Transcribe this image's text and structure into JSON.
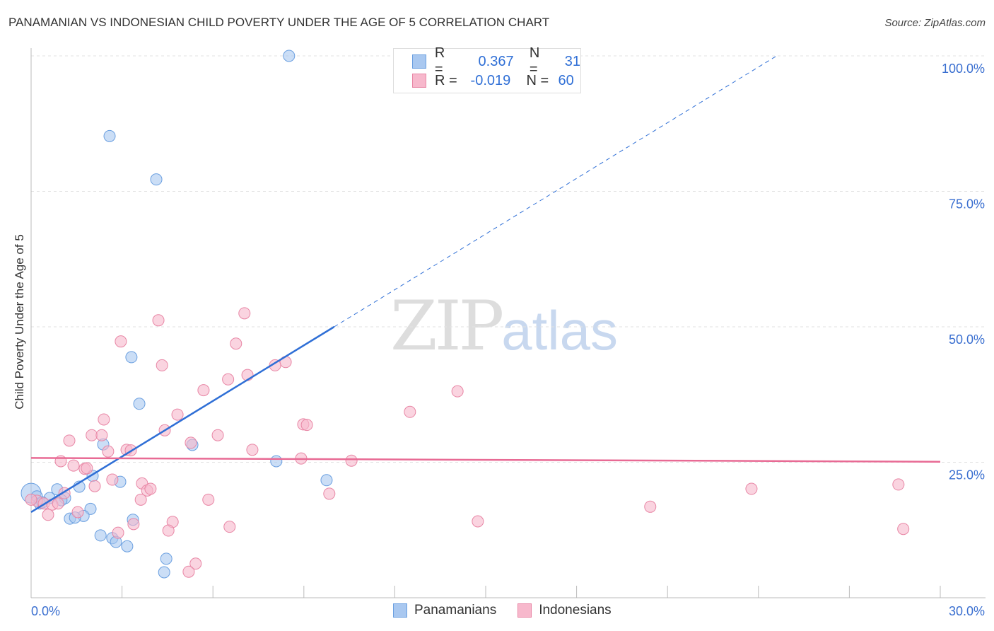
{
  "title": "PANAMANIAN VS INDONESIAN CHILD POVERTY UNDER THE AGE OF 5 CORRELATION CHART",
  "source": "Source: ZipAtlas.com",
  "watermark": {
    "zip": "ZIP",
    "atlas": "atlas"
  },
  "legend": {
    "rows": [
      {
        "r_label": "R =",
        "r": "0.367",
        "n_label": "N =",
        "n": "31"
      },
      {
        "r_label": "R =",
        "r": "-0.019",
        "n_label": "N =",
        "n": "60"
      }
    ]
  },
  "chart_data": {
    "type": "scatter",
    "title": "PANAMANIAN VS INDONESIAN CHILD POVERTY UNDER THE AGE OF 5 CORRELATION CHART",
    "xlabel": "",
    "ylabel": "Child Poverty Under the Age of 5",
    "xlim": [
      0,
      30
    ],
    "ylim": [
      0,
      100
    ],
    "x_tick_labels": [
      "0.0%",
      "30.0%"
    ],
    "y_tick_labels": [
      "100.0%",
      "75.0%",
      "50.0%",
      "25.0%"
    ],
    "y_ticks": [
      100,
      75,
      50,
      25
    ],
    "grid": true,
    "legend_position": "bottom-center",
    "series": [
      {
        "name": "Panamanians",
        "color": "#6a9fe0",
        "fill": "#a9c8f0",
        "line_color": "#2f6fd6",
        "trend": {
          "x0": 0,
          "y0": 15.8,
          "x1": 10.0,
          "y1": 50,
          "dashed_to_x": 24.6,
          "dashed_to_y": 100
        },
        "points": [
          [
            8.51,
            100
          ],
          [
            2.59,
            85.2
          ],
          [
            4.13,
            77.2
          ],
          [
            3.31,
            44.4
          ],
          [
            3.57,
            35.8
          ],
          [
            2.38,
            28.3
          ],
          [
            5.32,
            28.2
          ],
          [
            8.09,
            25.2
          ],
          [
            9.75,
            21.7
          ],
          [
            2.94,
            21.4
          ],
          [
            2.03,
            22.5
          ],
          [
            1.59,
            20.5
          ],
          [
            0.86,
            20.0
          ],
          [
            0,
            19.3
          ],
          [
            0.19,
            18.7
          ],
          [
            0.61,
            18.4
          ],
          [
            1.12,
            18.4
          ],
          [
            1.0,
            18.0
          ],
          [
            0.28,
            17.4
          ],
          [
            0.37,
            17.6
          ],
          [
            1.96,
            16.4
          ],
          [
            1.73,
            15.1
          ],
          [
            1.28,
            14.6
          ],
          [
            1.45,
            14.8
          ],
          [
            3.36,
            14.4
          ],
          [
            2.29,
            11.5
          ],
          [
            2.68,
            11.0
          ],
          [
            2.8,
            10.3
          ],
          [
            3.17,
            9.5
          ],
          [
            4.46,
            7.2
          ],
          [
            4.39,
            4.7
          ]
        ]
      },
      {
        "name": "Indonesians",
        "color": "#e886a5",
        "fill": "#f7b8cc",
        "line_color": "#e86a94",
        "trend": {
          "x0": 0,
          "y0": 25.8,
          "x1": 30,
          "y1": 25.1
        },
        "points": [
          [
            7.04,
            52.5
          ],
          [
            4.2,
            51.2
          ],
          [
            2.96,
            47.3
          ],
          [
            6.76,
            46.9
          ],
          [
            4.32,
            42.9
          ],
          [
            8.4,
            43.5
          ],
          [
            8.05,
            42.9
          ],
          [
            7.14,
            41.1
          ],
          [
            6.5,
            40.3
          ],
          [
            5.69,
            38.3
          ],
          [
            14.07,
            38.1
          ],
          [
            12.5,
            34.3
          ],
          [
            4.83,
            33.8
          ],
          [
            2.4,
            32.9
          ],
          [
            8.98,
            32.0
          ],
          [
            9.1,
            31.9
          ],
          [
            4.41,
            30.9
          ],
          [
            2.0,
            30.0
          ],
          [
            2.33,
            30.0
          ],
          [
            6.16,
            30.0
          ],
          [
            1.26,
            29.0
          ],
          [
            5.27,
            28.6
          ],
          [
            2.54,
            27.0
          ],
          [
            3.15,
            27.3
          ],
          [
            3.29,
            27.2
          ],
          [
            7.3,
            27.3
          ],
          [
            8.91,
            25.7
          ],
          [
            10.57,
            25.3
          ],
          [
            0.98,
            25.2
          ],
          [
            1.4,
            24.4
          ],
          [
            1.77,
            23.8
          ],
          [
            1.84,
            23.9
          ],
          [
            2.68,
            21.8
          ],
          [
            3.66,
            21.1
          ],
          [
            2.1,
            20.6
          ],
          [
            3.83,
            19.8
          ],
          [
            3.94,
            20.1
          ],
          [
            23.77,
            20.1
          ],
          [
            28.62,
            20.9
          ],
          [
            1.1,
            19.3
          ],
          [
            9.84,
            19.2
          ],
          [
            3.62,
            18.1
          ],
          [
            5.85,
            18.1
          ],
          [
            0.19,
            17.9
          ],
          [
            0.42,
            17.4
          ],
          [
            0.7,
            17.2
          ],
          [
            20.43,
            16.8
          ],
          [
            1.54,
            15.8
          ],
          [
            0.56,
            15.3
          ],
          [
            4.67,
            14.0
          ],
          [
            14.74,
            14.1
          ],
          [
            3.38,
            13.6
          ],
          [
            6.55,
            13.1
          ],
          [
            28.78,
            12.7
          ],
          [
            2.87,
            12.0
          ],
          [
            4.53,
            12.4
          ],
          [
            5.43,
            6.3
          ],
          [
            5.2,
            4.8
          ],
          [
            0,
            18.1
          ],
          [
            0.89,
            17.4
          ]
        ]
      }
    ]
  }
}
